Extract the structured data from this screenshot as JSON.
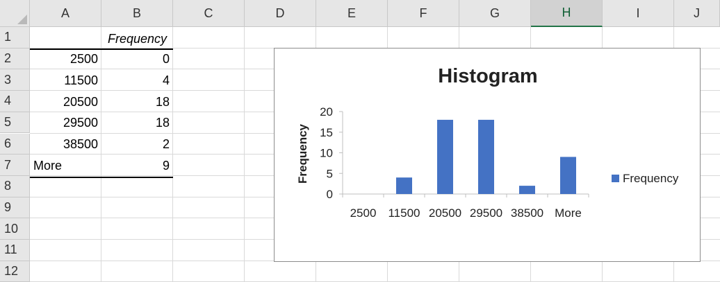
{
  "spreadsheet": {
    "columns": [
      "A",
      "B",
      "C",
      "D",
      "E",
      "F",
      "G",
      "H",
      "I",
      "J"
    ],
    "selected_column": "H",
    "rows": [
      "1",
      "2",
      "3",
      "4",
      "5",
      "6",
      "7",
      "8",
      "9",
      "10",
      "11",
      "12"
    ],
    "table": {
      "header_b": "Frequency",
      "bins": [
        "2500",
        "11500",
        "20500",
        "29500",
        "38500",
        "More"
      ],
      "frequencies": [
        "0",
        "4",
        "18",
        "18",
        "2",
        "9"
      ]
    }
  },
  "chart_data": {
    "type": "bar",
    "title": "Histogram",
    "ylabel": "Frequency",
    "xlabel": "",
    "categories": [
      "2500",
      "11500",
      "20500",
      "29500",
      "38500",
      "More"
    ],
    "series": [
      {
        "name": "Frequency",
        "values": [
          0,
          4,
          18,
          18,
          2,
          9
        ],
        "color": "#4472c4"
      }
    ],
    "ylim": [
      0,
      20
    ],
    "yticks": [
      0,
      5,
      10,
      15,
      20
    ],
    "legend": "right",
    "grid": false
  }
}
